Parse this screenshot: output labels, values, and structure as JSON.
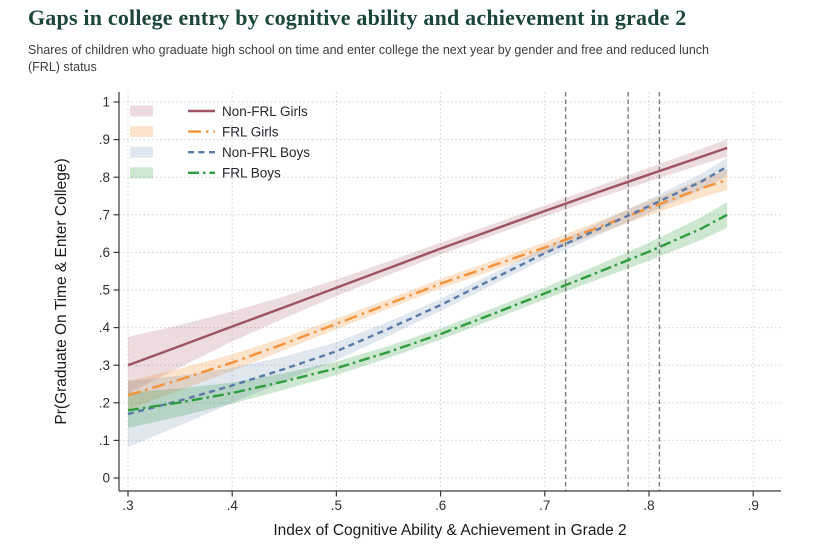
{
  "page": {
    "title": "Gaps in college entry by cognitive ability and achievement in grade 2",
    "subtitle": "Shares of children who graduate high school on time and enter college the next year by gender and free and reduced lunch (FRL) status",
    "title_color": "#1b463c"
  },
  "chart_data": {
    "type": "line",
    "title": "Gaps in college entry by cognitive ability and achievement in grade 2",
    "xlabel": "Index of Cognitive Ability & Achievement in Grade 2",
    "ylabel": "Pr(Graduate On Time & Enter College)",
    "xlim": [
      0.29,
      0.93
    ],
    "ylim": [
      0,
      1
    ],
    "grid": "dotted-both",
    "legend_position": "inside-top-left",
    "x_tick_values": [
      0.3,
      0.4,
      0.5,
      0.6,
      0.7,
      0.8,
      0.9
    ],
    "x_tick_labels": [
      ".3",
      ".4",
      ".5",
      ".6",
      ".7",
      ".8",
      ".9"
    ],
    "y_tick_values": [
      0,
      0.1,
      0.2,
      0.3,
      0.4,
      0.5,
      0.6,
      0.7,
      0.8,
      0.9,
      1
    ],
    "y_tick_labels": [
      "0",
      ".1",
      ".2",
      ".3",
      ".4",
      ".5",
      ".6",
      ".7",
      ".8",
      ".9",
      "1"
    ],
    "reference_lines_x": [
      0.72,
      0.78,
      0.81
    ],
    "x": [
      0.3,
      0.35,
      0.4,
      0.45,
      0.5,
      0.55,
      0.6,
      0.65,
      0.7,
      0.75,
      0.8,
      0.85,
      0.875
    ],
    "series": [
      {
        "name": "Non-FRL Girls",
        "color": "#9d5361",
        "band_color": "rgba(158,82,96,0.20)",
        "dash": "solid",
        "values": [
          0.3,
          0.351,
          0.403,
          0.454,
          0.506,
          0.558,
          0.61,
          0.66,
          0.71,
          0.759,
          0.807,
          0.854,
          0.878
        ],
        "ci_halfwidth": [
          0.075,
          0.056,
          0.04,
          0.029,
          0.022,
          0.018,
          0.016,
          0.015,
          0.015,
          0.016,
          0.018,
          0.021,
          0.023
        ]
      },
      {
        "name": "FRL Girls",
        "color": "#f5923a",
        "band_color": "rgba(245,146,58,0.26)",
        "dash": "dash-dot",
        "values": [
          0.22,
          0.262,
          0.307,
          0.357,
          0.41,
          0.463,
          0.517,
          0.565,
          0.613,
          0.665,
          0.718,
          0.77,
          0.793
        ],
        "ci_halfwidth": [
          0.038,
          0.029,
          0.022,
          0.017,
          0.014,
          0.013,
          0.013,
          0.013,
          0.014,
          0.016,
          0.019,
          0.024,
          0.027
        ]
      },
      {
        "name": "Non-FRL Boys",
        "color": "#5a7aa8",
        "band_color": "rgba(90,122,168,0.18)",
        "dash": "short-dash",
        "values": [
          0.17,
          0.206,
          0.246,
          0.29,
          0.337,
          0.397,
          0.46,
          0.529,
          0.598,
          0.66,
          0.723,
          0.788,
          0.828
        ],
        "ci_halfwidth": [
          0.088,
          0.066,
          0.047,
          0.033,
          0.024,
          0.019,
          0.016,
          0.015,
          0.015,
          0.016,
          0.018,
          0.021,
          0.024
        ]
      },
      {
        "name": "FRL Boys",
        "color": "#2f9c3f",
        "band_color": "rgba(47,156,63,0.24)",
        "dash": "long-dash-dot",
        "values": [
          0.18,
          0.201,
          0.226,
          0.257,
          0.292,
          0.335,
          0.383,
          0.436,
          0.491,
          0.546,
          0.602,
          0.663,
          0.7
        ],
        "ci_halfwidth": [
          0.047,
          0.037,
          0.028,
          0.022,
          0.018,
          0.016,
          0.015,
          0.015,
          0.016,
          0.019,
          0.024,
          0.03,
          0.034
        ]
      }
    ],
    "style": {
      "grid_color": "#d0d0d0",
      "axis_color": "#3a3a3a",
      "tick_label_color": "#2f2f2f",
      "axis_title_color": "#1a1a1a",
      "legend_text_color": "#26262e",
      "reference_line_color": "#7d7d7d"
    }
  }
}
